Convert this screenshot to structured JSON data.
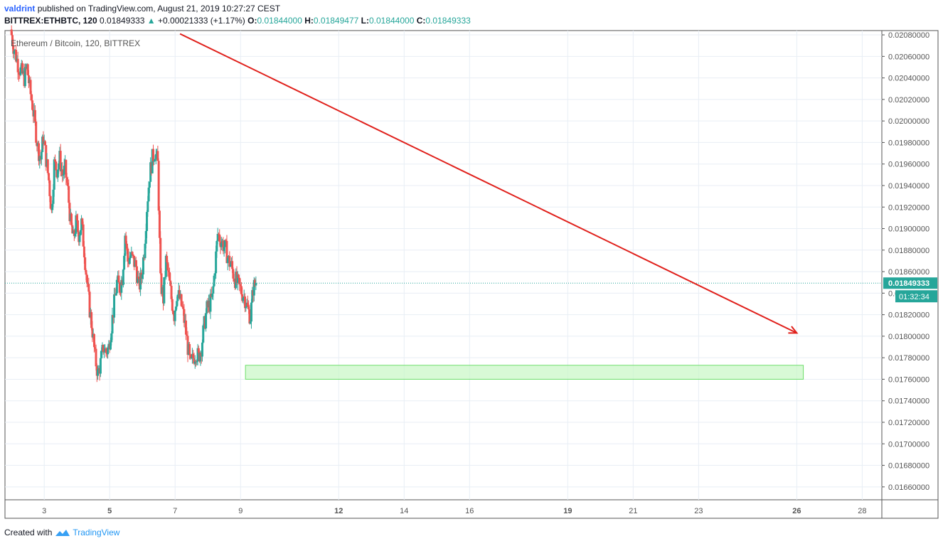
{
  "header": {
    "author": "valdrint",
    "published": "published on TradingView.com, August 21, 2019 10:27:27 CEST",
    "symbol": "BITTREX:ETHBTC, 120",
    "last": "0.01849333",
    "change_arrow": "▲",
    "change": "+0.00021333 (+1.17%)",
    "o_label": "O:",
    "o_value": "0.01844000",
    "h_label": "H:",
    "h_value": "0.01849477",
    "l_label": "L:",
    "l_value": "0.01844000",
    "c_label": "C:",
    "c_value": "0.01849333"
  },
  "footer": {
    "created_with": "Created with",
    "brand": "TradingView",
    "logo_icon": "tradingview-logo-icon"
  },
  "colors": {
    "up": "#26a69a",
    "down": "#ef5350",
    "trendline": "#e0201b",
    "support_fill": "#c8f7c5",
    "support_stroke": "#6ede6a",
    "price_line": "#26a69a",
    "grid": "#e8eef5"
  },
  "chart_data": {
    "type": "candlestick",
    "legend": "Ethereum / Bitcoin, 120, BITTREX",
    "ylim": [
      0.01648,
      0.02084
    ],
    "xlim": [
      1.8,
      28.6
    ],
    "x_unit": "day of August 2019",
    "x_ticks": [
      {
        "label": "3",
        "value": 3,
        "bold": false
      },
      {
        "label": "5",
        "value": 5,
        "bold": true
      },
      {
        "label": "7",
        "value": 7,
        "bold": false
      },
      {
        "label": "9",
        "value": 9,
        "bold": false
      },
      {
        "label": "12",
        "value": 12,
        "bold": true
      },
      {
        "label": "14",
        "value": 14,
        "bold": false
      },
      {
        "label": "16",
        "value": 16,
        "bold": false
      },
      {
        "label": "19",
        "value": 19,
        "bold": true
      },
      {
        "label": "21",
        "value": 21,
        "bold": false
      },
      {
        "label": "23",
        "value": 23,
        "bold": false
      },
      {
        "label": "26",
        "value": 26,
        "bold": true
      },
      {
        "label": "28",
        "value": 28,
        "bold": false
      }
    ],
    "y_ticks": [
      "0.02080000",
      "0.02060000",
      "0.02040000",
      "0.02020000",
      "0.02000000",
      "0.01980000",
      "0.01960000",
      "0.01940000",
      "0.01920000",
      "0.01900000",
      "0.01880000",
      "0.01860000",
      "0.01840000",
      "0.01820000",
      "0.01800000",
      "0.01780000",
      "0.01760000",
      "0.01740000",
      "0.01720000",
      "0.01700000",
      "0.01680000",
      "0.01660000"
    ],
    "grid": true,
    "last_price": "0.01849333",
    "countdown": "01:32:34",
    "candles_x_start": 2.0,
    "candles_x_step": 0.0833,
    "close_path": [
      0.02085,
      0.0207,
      0.0206,
      0.0205,
      0.02045,
      0.0204,
      0.0205,
      0.0203,
      0.02015,
      0.01995,
      0.01975,
      0.01965,
      0.01985,
      0.01965,
      0.01945,
      0.01915,
      0.0196,
      0.01955,
      0.01965,
      0.0195,
      0.01955,
      0.01935,
      0.01905,
      0.0189,
      0.01905,
      0.01895,
      0.01905,
      0.0188,
      0.0185,
      0.01825,
      0.01805,
      0.0178,
      0.01765,
      0.01775,
      0.0179,
      0.01785,
      0.0179,
      0.0181,
      0.0183,
      0.0185,
      0.01845,
      0.01855,
      0.01895,
      0.0187,
      0.01875,
      0.0187,
      0.01865,
      0.01845,
      0.01855,
      0.0188,
      0.0192,
      0.0195,
      0.01965,
      0.01972,
      0.0196,
      0.0185,
      0.01835,
      0.0187,
      0.01855,
      0.01835,
      0.0182,
      0.0184,
      0.01835,
      0.01825,
      0.0181,
      0.0179,
      0.01772,
      0.0178,
      0.01785,
      0.0178,
      0.0179,
      0.0181,
      0.01825,
      0.0183,
      0.01835,
      0.01865,
      0.01895,
      0.0189,
      0.01885,
      0.0188,
      0.0187,
      0.01865,
      0.01855,
      0.0185,
      0.01845,
      0.0184,
      0.01835,
      0.01825,
      0.01818,
      0.01845,
      0.01849333
    ],
    "trendline": {
      "x1": 7.15,
      "y1": 0.02081,
      "x2": 26.0,
      "y2": 0.01803
    },
    "support_zone": {
      "x1": 9.15,
      "x2": 26.2,
      "y_low": 0.0176,
      "y_high": 0.01773
    }
  }
}
